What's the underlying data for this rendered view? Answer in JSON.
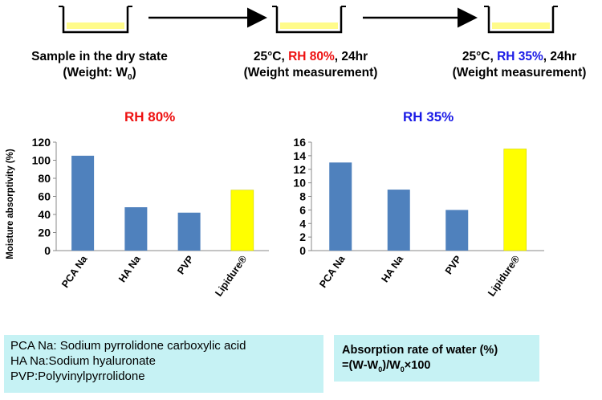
{
  "process": {
    "step1_line1": "Sample in the dry state",
    "step1_line2_prefix": "(Weight: W",
    "step1_line2_sub": "0",
    "step1_line2_suffix": ")",
    "step2_temp": "25°C, ",
    "step2_rh": "RH 80%",
    "step2_time": ", 24hr",
    "step2_line2": "(Weight measurement)",
    "step3_temp": "25°C, ",
    "step3_rh": "RH 35%",
    "step3_time": ", 24hr",
    "step3_line2": "(Weight measurement)"
  },
  "colors": {
    "rh80": "#ee1111",
    "rh35": "#1a1ae6",
    "bar_blue": "#4f81bd",
    "bar_yellow": "#ffff00",
    "dish_fill": "#fffb8a",
    "info_box": "#c6f2f4"
  },
  "ylabel": "Moisture absorptivity (%)",
  "chart_data": [
    {
      "type": "bar",
      "title": "RH 80%",
      "categories": [
        "PCA Na",
        "HA Na",
        "PVP",
        "Lipidure®"
      ],
      "values": [
        105,
        48,
        42,
        67
      ],
      "colors": [
        "#4f81bd",
        "#4f81bd",
        "#4f81bd",
        "#ffff00"
      ],
      "ylim": [
        0,
        120
      ],
      "yticks": [
        0,
        20,
        40,
        60,
        80,
        100,
        120
      ],
      "ylabel": "Moisture absorptivity (%)",
      "grid": false
    },
    {
      "type": "bar",
      "title": "RH 35%",
      "categories": [
        "PCA Na",
        "HA Na",
        "PVP",
        "Lipidure®"
      ],
      "values": [
        13,
        9,
        6,
        15
      ],
      "colors": [
        "#4f81bd",
        "#4f81bd",
        "#4f81bd",
        "#ffff00"
      ],
      "ylim": [
        0,
        16
      ],
      "yticks": [
        0,
        2,
        4,
        6,
        8,
        10,
        12,
        14,
        16
      ],
      "grid": false
    }
  ],
  "legend_box": {
    "line1": "PCA Na: Sodium pyrrolidone carboxylic acid",
    "line2": "HA Na:Sodium hyaluronate",
    "line3": "PVP:Polyvinylpyrrolidone"
  },
  "formula_box": {
    "line1": "Absorption rate of water (%)",
    "part1": "=(W-W",
    "sub1": "0",
    "part2": ")/W",
    "sub2": "0",
    "part3": "×100"
  }
}
